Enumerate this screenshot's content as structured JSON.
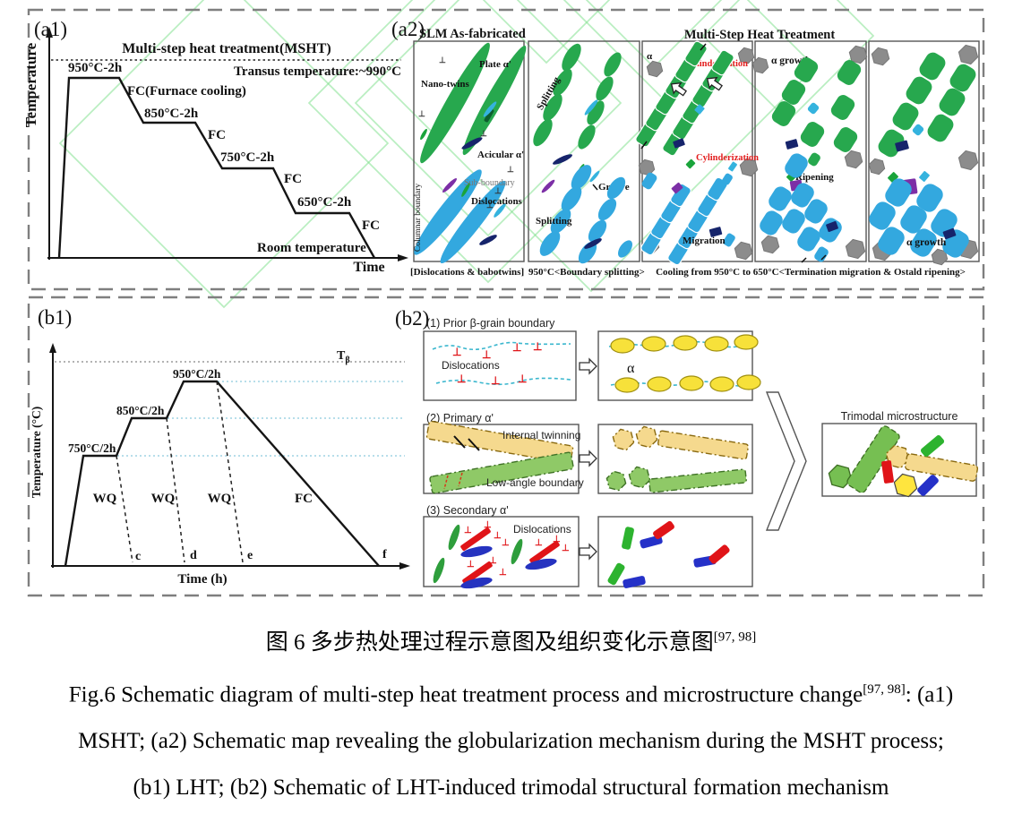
{
  "symbols": {
    "dislocation": "⊥"
  },
  "a1": {
    "label": "(a1)",
    "y_axis": "Temperature",
    "x_axis": "Time",
    "title": "Multi-step heat treatment(MSHT)",
    "transus": "Transus temperature:~990°C",
    "step_950": "950°C-2h",
    "fc_long": "FC(Furnace cooling)",
    "step_850": "850°C-2h",
    "step_750": "750°C-2h",
    "step_650": "650°C-2h",
    "fc": "FC",
    "room": "Room temperature"
  },
  "a2": {
    "label": "(a2)",
    "left_title": "SLM As-fabricated",
    "right_title": "Multi-Step Heat Treatment",
    "p1": {
      "plate": "Plate α'",
      "nano": "Nano-twins",
      "acicular": "Acicular α'",
      "sub": "Sub-boundary",
      "disl": "Dislocations",
      "columnar": "Columnar boundary",
      "caption": "[Dislocations & babotwins]"
    },
    "p2": {
      "splitting": "Splitting",
      "groove": "Groove",
      "splitting2": "Splitting",
      "caption": "950°C<Boundary splitting>"
    },
    "p3": {
      "alpha": "α",
      "cyl": "Cylinderization",
      "cyl2": "Cylinderization",
      "migration": "Migration"
    },
    "p4": {
      "growth": "α growth",
      "ripening": "Ripening"
    },
    "p5": {
      "growth": "α growth"
    },
    "cooling_caption": "Cooling from 950°C to 650°C<Termination migration & Ostald ripening>"
  },
  "b1": {
    "label": "(b1)",
    "y_axis": "Temperature (°C)",
    "x_axis": "Time (h)",
    "t_main": "T",
    "t_sub": "β",
    "step_750": "750°C/2h",
    "step_850": "850°C/2h",
    "step_950": "950°C/2h",
    "wq": "WQ",
    "fc": "FC",
    "pt_c": "c",
    "pt_d": "d",
    "pt_e": "e",
    "pt_f": "f"
  },
  "b2": {
    "label": "(b2)",
    "r1": {
      "title": "(1) Prior β-grain boundary",
      "disl": "Dislocations",
      "alpha": "α"
    },
    "r2": {
      "title": "(2) Primary α'",
      "twinning": "Internal twinning",
      "low_angle": "Low-angle boundary"
    },
    "r3": {
      "title": "(3) Secondary α'",
      "disl": "Dislocations"
    },
    "result": "Trimodal microstructure"
  },
  "caption": {
    "zh": "图 6  多步热处理过程示意图及组织变化示意图",
    "zh_sup": "[97, 98]",
    "en1": "Fig.6 Schematic diagram of multi-step heat treatment process and microstructure change",
    "en1_sup": "[97, 98]",
    "en1_tail": ": (a1)",
    "en2": "MSHT; (a2) Schematic map revealing the globularization mechanism during the MSHT process;",
    "en3": "(b1) LHT; (b2) Schematic of LHT-induced trimodal structural formation mechanism"
  },
  "colors": {
    "plate_green": "#27a84e",
    "plate_blue": "#33a8df",
    "hex_grey": "#8c8c8c",
    "navy": "#16246b",
    "purple": "#7c2fa6",
    "red_label": "#e31e1e",
    "yellow": "#f7e13a",
    "tan_bar": "#f5d98e",
    "b2_green": "#8fc967",
    "red_bar": "#e01418",
    "blue_bar": "#2531c8",
    "watermark_green": "#7fe08d"
  },
  "chart_data": [
    {
      "type": "line",
      "title": "Multi-step heat treatment(MSHT)",
      "xlabel": "Time",
      "ylabel": "Temperature",
      "annotations": [
        "Transus temperature:~990°C",
        "Room temperature"
      ],
      "steps": [
        {
          "temp_c": 950,
          "hold": "2h",
          "cooling": "FC"
        },
        {
          "temp_c": 850,
          "hold": "2h",
          "cooling": "FC"
        },
        {
          "temp_c": 750,
          "hold": "2h",
          "cooling": "FC"
        },
        {
          "temp_c": 650,
          "hold": "2h",
          "cooling": "FC"
        }
      ]
    },
    {
      "type": "line",
      "title": "LHT",
      "xlabel": "Time (h)",
      "ylabel": "Temperature (°C)",
      "reference_line": "Tβ",
      "steps": [
        {
          "temp_c": 750,
          "hold": "2h",
          "quench": "WQ",
          "point": "c"
        },
        {
          "temp_c": 850,
          "hold": "2h",
          "quench": "WQ",
          "point": "d"
        },
        {
          "temp_c": 950,
          "hold": "2h",
          "quench": "WQ",
          "point": "e"
        },
        {
          "cooling": "FC",
          "point": "f"
        }
      ]
    }
  ]
}
